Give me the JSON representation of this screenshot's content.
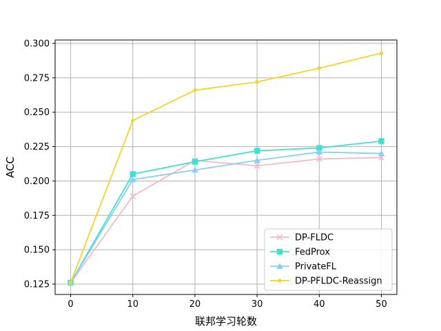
{
  "chart_data": {
    "type": "line",
    "title": "",
    "xlabel": "联邦学习轮数",
    "ylabel": "ACC",
    "x": [
      0,
      10,
      20,
      30,
      40,
      50
    ],
    "xlim": [
      -2.5,
      52.5
    ],
    "ylim": [
      0.1175,
      0.3025
    ],
    "xticks": [
      0,
      10,
      20,
      30,
      40,
      50
    ],
    "yticks": [
      0.125,
      0.15,
      0.175,
      0.2,
      0.225,
      0.25,
      0.275,
      0.3
    ],
    "ytick_labels": [
      "0.125",
      "0.150",
      "0.175",
      "0.200",
      "0.225",
      "0.250",
      "0.275",
      "0.300"
    ],
    "grid": true,
    "legend_position": "lower-right",
    "series": [
      {
        "name": "DP-FLDC",
        "color": "#f7b8c2",
        "marker": "x",
        "values": [
          0.126,
          0.189,
          0.215,
          0.211,
          0.216,
          0.217
        ]
      },
      {
        "name": "FedProx",
        "color": "#40e0d0",
        "marker": "square",
        "values": [
          0.126,
          0.205,
          0.214,
          0.222,
          0.224,
          0.229
        ]
      },
      {
        "name": "PrivateFL",
        "color": "#87cefa",
        "marker": "triangle",
        "values": [
          0.126,
          0.201,
          0.208,
          0.215,
          0.221,
          0.22
        ]
      },
      {
        "name": "DP-PFLDC-Reassign",
        "color": "#f5d327",
        "marker": "dot",
        "values": [
          0.126,
          0.244,
          0.266,
          0.272,
          0.282,
          0.293
        ]
      }
    ]
  }
}
